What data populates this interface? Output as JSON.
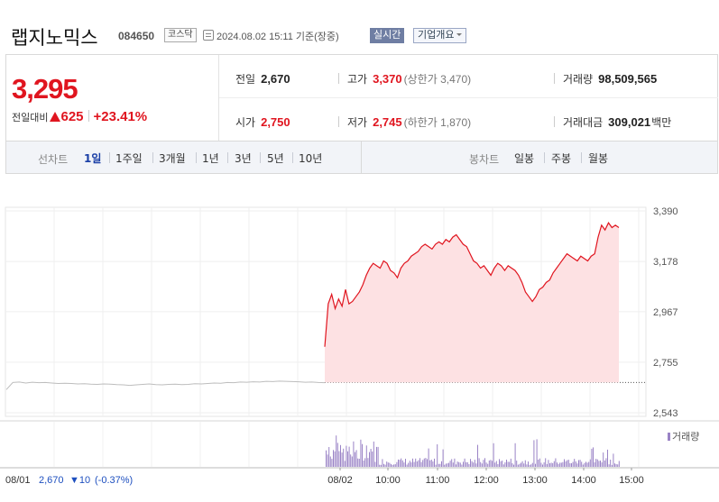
{
  "header": {
    "stock_name": "랩지노믹스",
    "code": "084650",
    "market": "코스닥",
    "asof": "2024.08.02 15:11 기준(장중)",
    "realtime": "실시간",
    "corp_info": "기업개요"
  },
  "price": {
    "current": "3,295",
    "change_label": "전일대비",
    "change_value": "625",
    "change_pct": "+23.41%"
  },
  "stats": {
    "prev_label": "전일",
    "prev": "2,670",
    "high_label": "고가",
    "high": "3,370",
    "upper_limit": "(상한가 3,470)",
    "volume_label": "거래량",
    "volume": "98,509,565",
    "open_label": "시가",
    "open": "2,750",
    "low_label": "저가",
    "low": "2,745",
    "lower_limit": "(하한가 1,870)",
    "amount_label": "거래대금",
    "amount": "309,021",
    "amount_unit": "백만"
  },
  "toolbar": {
    "line_label": "선차트",
    "line_periods": [
      "1일",
      "1주일",
      "3개월",
      "1년",
      "3년",
      "5년",
      "10년"
    ],
    "candle_label": "봉차트",
    "candle_periods": [
      "일봉",
      "주봉",
      "월봉"
    ]
  },
  "colors": {
    "up": "#e0151f",
    "prev_line": "#bdbdbd",
    "fill": "#fde1e3",
    "volume": "#9a83c6",
    "active_tab": "#1a3fa6"
  },
  "chart_data": {
    "type": "line",
    "y_ticks": [
      "3,390",
      "3,178",
      "2,967",
      "2,755",
      "2,543"
    ],
    "ylim": [
      2543,
      3390
    ],
    "x_ticks": [
      "08/02",
      "10:00",
      "11:00",
      "12:00",
      "13:00",
      "14:00",
      "15:00"
    ],
    "prev_day_label": "08/01",
    "prev_day_summary": "2,670",
    "prev_day_change": "▼10",
    "prev_day_pct": "(-0.37%)",
    "volume_legend": "거래량",
    "reference_price": 2670,
    "prev_day_series": [
      2640,
      2670,
      2672,
      2668,
      2671,
      2669,
      2670,
      2668,
      2666,
      2667,
      2666,
      2664,
      2665,
      2663,
      2662,
      2664,
      2663,
      2661,
      2660,
      2658,
      2660,
      2662,
      2664,
      2661,
      2660,
      2662,
      2663,
      2661,
      2662,
      2665,
      2664,
      2666,
      2668,
      2667,
      2670,
      2669,
      2672,
      2671,
      2673,
      2672,
      2675,
      2674,
      2676,
      2675,
      2674,
      2673,
      2671,
      2672,
      2670,
      2669
    ],
    "series": [
      {
        "values": [
          2820,
          3000,
          3040,
          2980,
          3020,
          2990,
          3060,
          3000,
          3010,
          3030,
          3050,
          3080,
          3120,
          3150,
          3170,
          3160,
          3150,
          3180,
          3170,
          3140,
          3130,
          3110,
          3150,
          3170,
          3180,
          3200,
          3210,
          3220,
          3240,
          3250,
          3240,
          3230,
          3250,
          3260,
          3250,
          3270,
          3260,
          3280,
          3290,
          3270,
          3250,
          3240,
          3210,
          3180,
          3170,
          3150,
          3160,
          3140,
          3120,
          3150,
          3170,
          3160,
          3140,
          3160,
          3150,
          3140,
          3120,
          3090,
          3050,
          3030,
          3010,
          3030,
          3060,
          3070,
          3090,
          3100,
          3130,
          3150,
          3170,
          3190,
          3210,
          3200,
          3190,
          3180,
          3200,
          3190,
          3180,
          3200,
          3210,
          3280,
          3330,
          3310,
          3340,
          3320,
          3330,
          3320
        ]
      }
    ]
  }
}
